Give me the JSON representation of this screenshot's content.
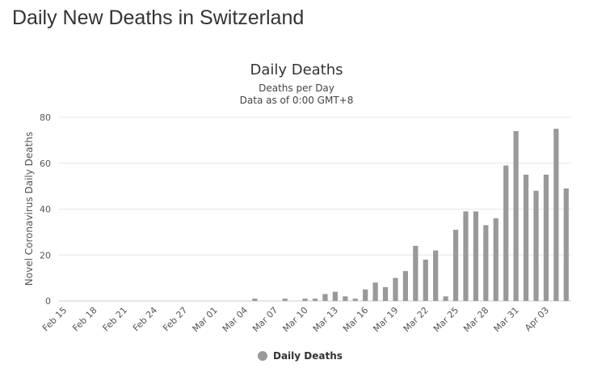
{
  "page": {
    "title": "Daily New Deaths in Switzerland"
  },
  "chart_data": {
    "type": "bar",
    "title": "Daily Deaths",
    "subtitle_1": "Deaths per Day",
    "subtitle_2": "Data as of 0:00 GMT+8",
    "ylabel": "Novel Coronavirus Daily Deaths",
    "xlabel": "",
    "ylim": [
      0,
      80
    ],
    "yticks": [
      0,
      20,
      40,
      60,
      80
    ],
    "grid": true,
    "legend_position": "bottom-center",
    "colors": {
      "bar": "#999999",
      "legend_marker": "#999999"
    },
    "x_tick_labels": [
      "Feb 15",
      "Feb 18",
      "Feb 21",
      "Feb 24",
      "Feb 27",
      "Mar 01",
      "Mar 04",
      "Mar 07",
      "Mar 10",
      "Mar 13",
      "Mar 16",
      "Mar 19",
      "Mar 22",
      "Mar 25",
      "Mar 28",
      "Mar 31",
      "Apr 03"
    ],
    "categories": [
      "Feb 15",
      "Feb 16",
      "Feb 17",
      "Feb 18",
      "Feb 19",
      "Feb 20",
      "Feb 21",
      "Feb 22",
      "Feb 23",
      "Feb 24",
      "Feb 25",
      "Feb 26",
      "Feb 27",
      "Feb 28",
      "Feb 29",
      "Mar 01",
      "Mar 02",
      "Mar 03",
      "Mar 04",
      "Mar 05",
      "Mar 06",
      "Mar 07",
      "Mar 08",
      "Mar 09",
      "Mar 10",
      "Mar 11",
      "Mar 12",
      "Mar 13",
      "Mar 14",
      "Mar 15",
      "Mar 16",
      "Mar 17",
      "Mar 18",
      "Mar 19",
      "Mar 20",
      "Mar 21",
      "Mar 22",
      "Mar 23",
      "Mar 24",
      "Mar 25",
      "Mar 26",
      "Mar 27",
      "Mar 28",
      "Mar 29",
      "Mar 30",
      "Mar 31",
      "Apr 01",
      "Apr 02",
      "Apr 03",
      "Apr 04",
      "Apr 05"
    ],
    "series": [
      {
        "name": "Daily Deaths",
        "values": [
          0,
          0,
          0,
          0,
          0,
          0,
          0,
          0,
          0,
          0,
          0,
          0,
          0,
          0,
          0,
          0,
          0,
          0,
          0,
          1,
          0,
          0,
          1,
          0,
          1,
          1,
          3,
          4,
          2,
          1,
          5,
          8,
          6,
          10,
          13,
          24,
          18,
          22,
          2,
          31,
          39,
          39,
          33,
          36,
          59,
          74,
          55,
          48,
          55,
          75,
          49
        ]
      }
    ]
  }
}
